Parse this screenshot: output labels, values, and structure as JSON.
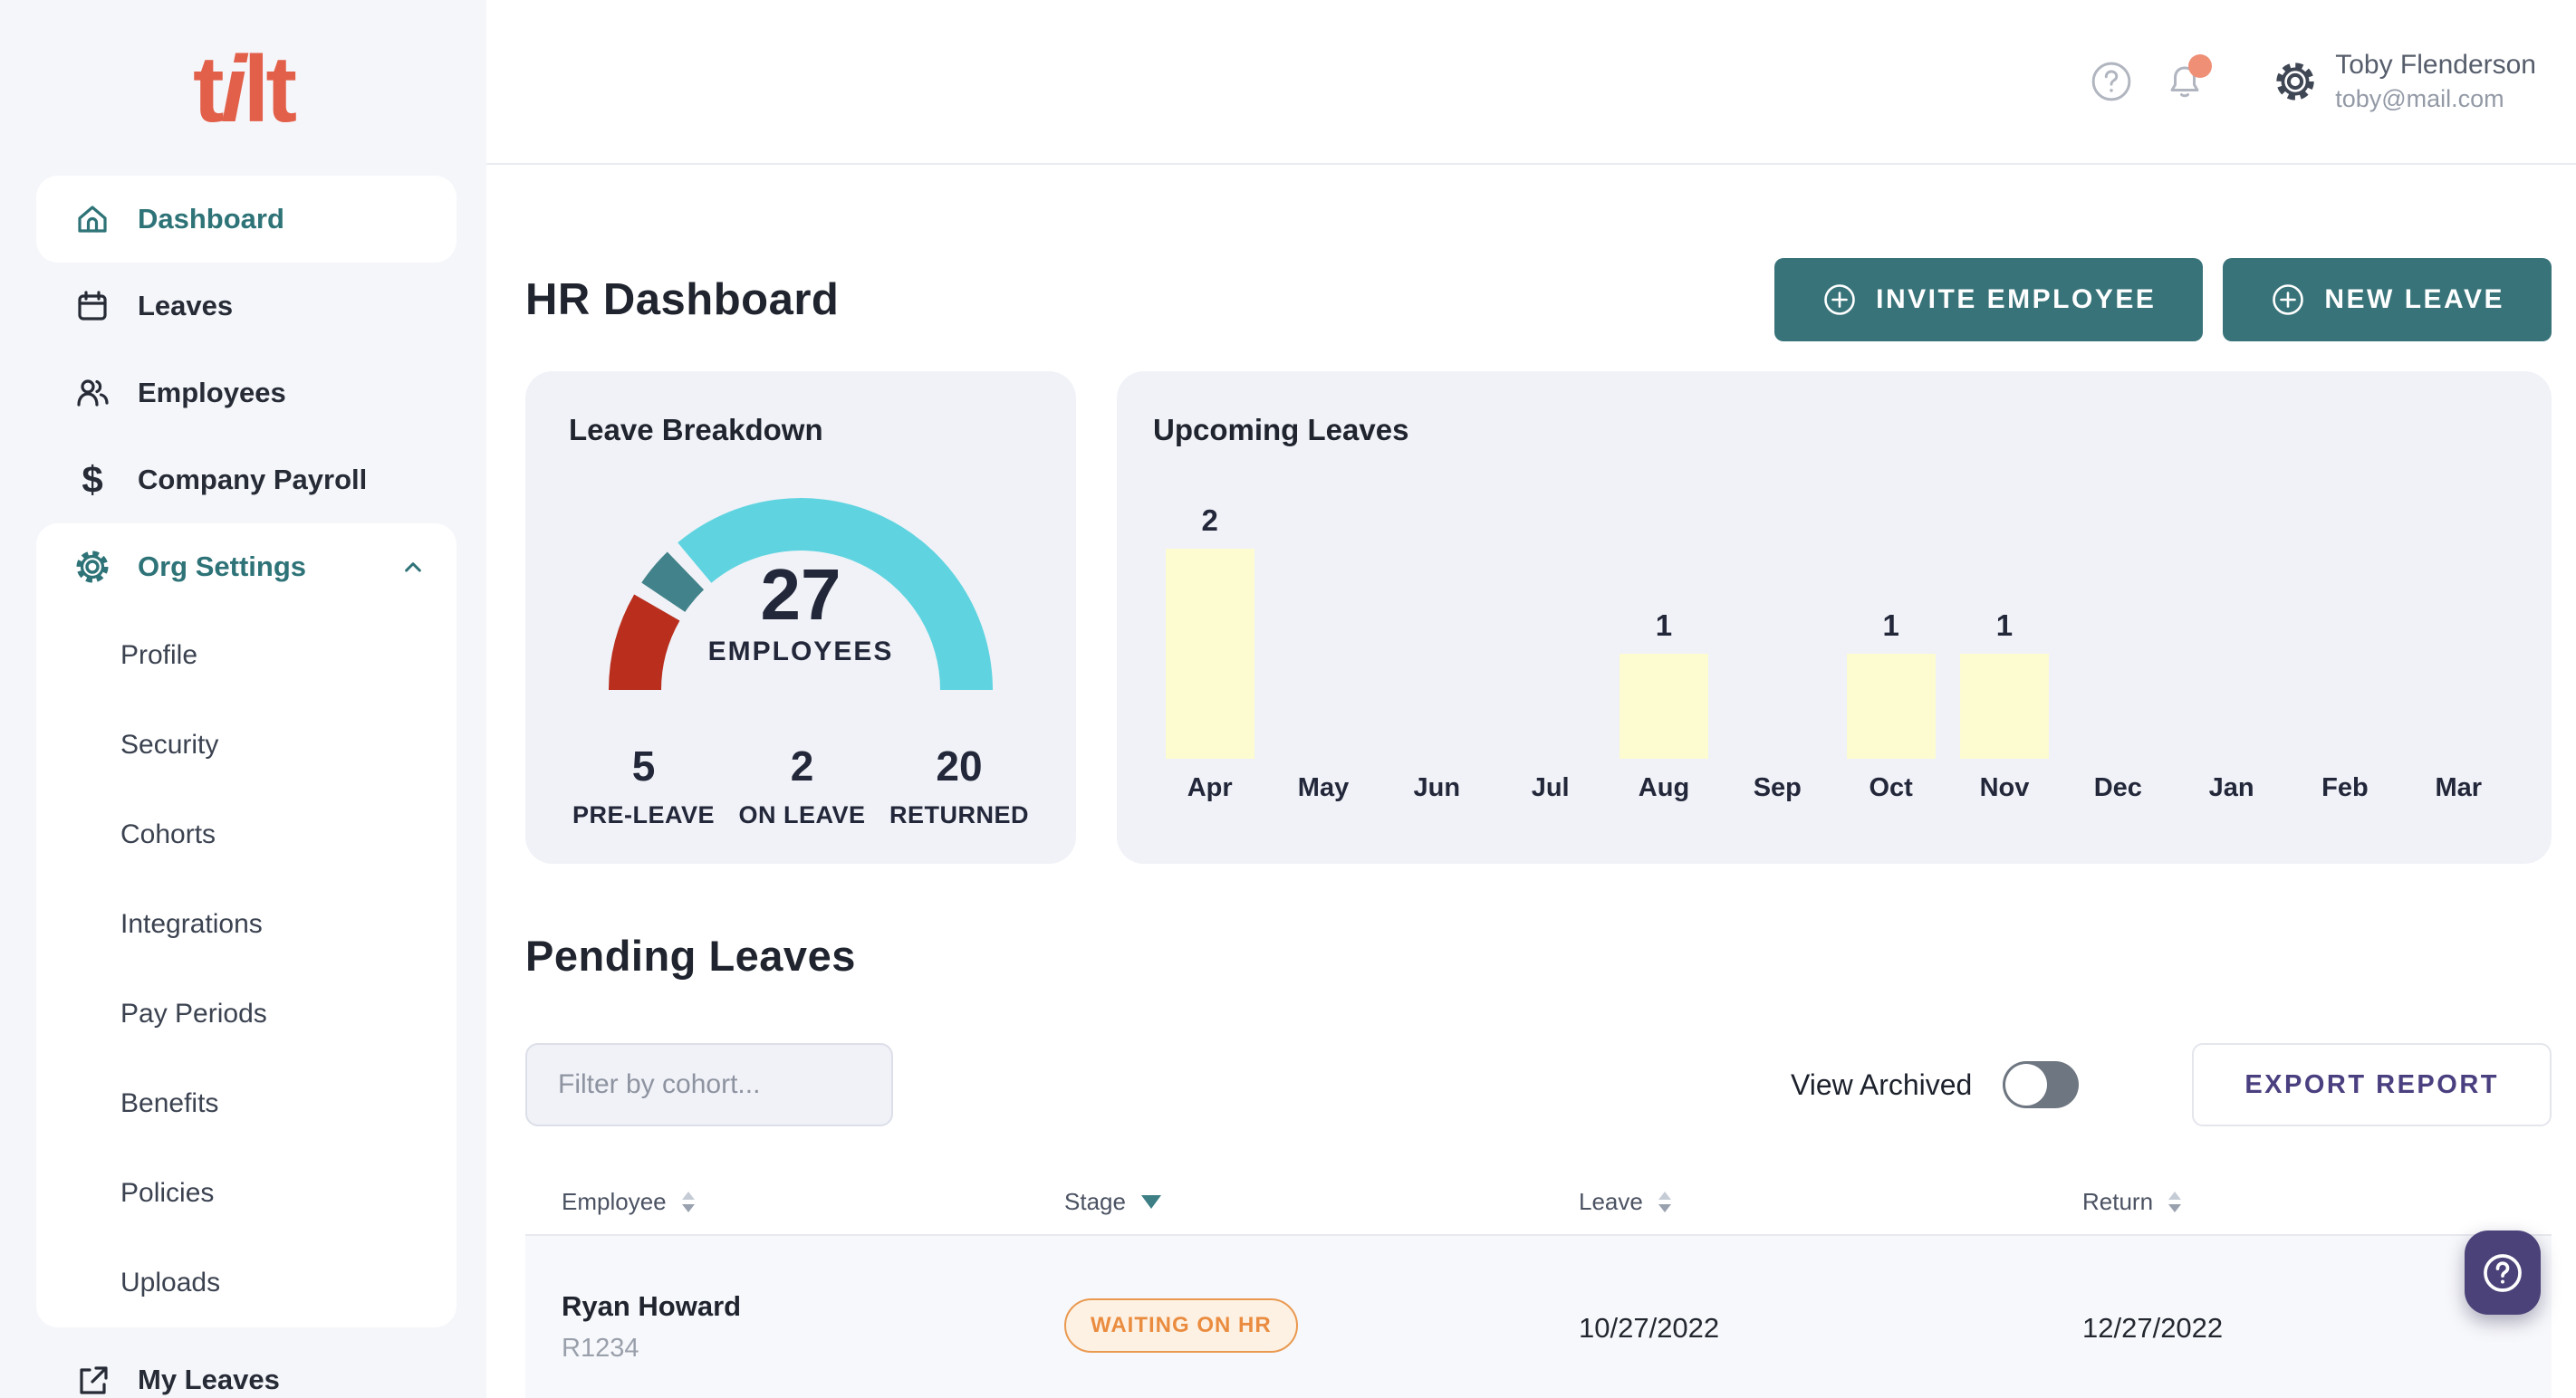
{
  "brand": {
    "logo_text": "tilt"
  },
  "sidebar": {
    "items": [
      {
        "label": "Dashboard",
        "icon": "home",
        "active": true
      },
      {
        "label": "Leaves",
        "icon": "calendar",
        "active": false
      },
      {
        "label": "Employees",
        "icon": "users",
        "active": false
      },
      {
        "label": "Company Payroll",
        "icon": "dollar",
        "active": false
      },
      {
        "label": "Org Settings",
        "icon": "gear",
        "active": false,
        "expanded": true,
        "children": [
          "Profile",
          "Security",
          "Cohorts",
          "Integrations",
          "Pay Periods",
          "Benefits",
          "Policies",
          "Uploads"
        ]
      },
      {
        "label": "My Leaves",
        "icon": "external-link",
        "active": false
      }
    ]
  },
  "topbar": {
    "user": {
      "name": "Toby Flenderson",
      "email": "toby@mail.com"
    },
    "notification_dot_color": "#ef8f76"
  },
  "page": {
    "title": "HR Dashboard",
    "invite_button": "INVITE EMPLOYEE",
    "new_leave_button": "NEW LEAVE"
  },
  "chart_data": [
    {
      "type": "gauge",
      "title": "Leave Breakdown",
      "center_value": "27",
      "center_label": "EMPLOYEES",
      "segments": [
        {
          "label": "PRE-LEAVE",
          "value": 5,
          "color": "#b92e1d"
        },
        {
          "label": "ON LEAVE",
          "value": 2,
          "color": "#42828a"
        },
        {
          "label": "RETURNED",
          "value": 20,
          "color": "#5fd4e0"
        }
      ]
    },
    {
      "type": "bar",
      "title": "Upcoming Leaves",
      "categories": [
        "Apr",
        "May",
        "Jun",
        "Jul",
        "Aug",
        "Sep",
        "Oct",
        "Nov",
        "Dec",
        "Jan",
        "Feb",
        "Mar"
      ],
      "values": [
        2,
        0,
        0,
        0,
        1,
        0,
        1,
        1,
        0,
        0,
        0,
        0
      ],
      "bar_color": "#fdfbd0",
      "ylim": [
        0,
        2
      ],
      "grid": false,
      "legend": false
    }
  ],
  "pending": {
    "title": "Pending Leaves",
    "filter_placeholder": "Filter by cohort...",
    "view_archived_label": "View Archived",
    "view_archived_on": false,
    "export_button": "EXPORT REPORT",
    "table": {
      "columns": [
        {
          "label": "Employee",
          "sort": "both"
        },
        {
          "label": "Stage",
          "sort": "desc"
        },
        {
          "label": "Leave",
          "sort": "both"
        },
        {
          "label": "Return",
          "sort": "both"
        }
      ],
      "rows": [
        {
          "employee": "Ryan Howard",
          "employee_id": "R1234",
          "stage": "WAITING ON HR",
          "leave": "10/27/2022",
          "return": "12/27/2022"
        }
      ]
    }
  },
  "colors": {
    "teal_button": "#387379",
    "teal_text": "#2e7377",
    "logo_coral": "#e2604a",
    "card_bg": "#f0f2f7",
    "sidebar_bg": "#f5f6fa",
    "badge_orange": "#ea8c3f",
    "export_purple": "#4a4080",
    "float_help_purple": "#4b4279",
    "bar_yellow": "#fdfbd0",
    "gauge_red": "#b92e1d",
    "gauge_teal": "#42828a",
    "gauge_cyan": "#5fd4e0"
  }
}
